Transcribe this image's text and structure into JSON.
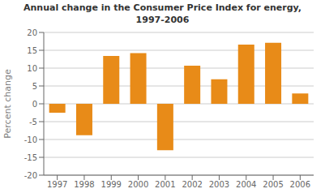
{
  "chart_data": {
    "type": "bar",
    "title": "Annual change in the Consumer Price Index for energy,\n1997-2006",
    "ylabel": "Percent change",
    "categories": [
      "1997",
      "1998",
      "1999",
      "2000",
      "2001",
      "2002",
      "2003",
      "2004",
      "2005",
      "2006"
    ],
    "values": [
      -2.5,
      -8.8,
      13.4,
      14.2,
      -13.0,
      10.7,
      6.9,
      16.6,
      17.1,
      2.9
    ],
    "color": "#E88B18",
    "ylim": [
      -20,
      20
    ],
    "yticks": [
      -20,
      -15,
      -10,
      -5,
      0,
      5,
      10,
      15,
      20
    ],
    "grid": true
  }
}
